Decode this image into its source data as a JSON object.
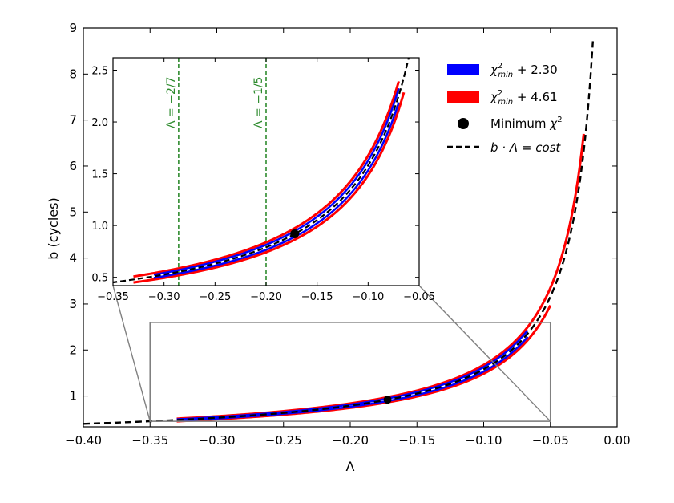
{
  "chart_data": [
    {
      "type": "line",
      "xlabel": "Λ",
      "ylabel": "b (cycles)",
      "xlim": [
        -0.4,
        0.0
      ],
      "ylim": [
        0.33,
        9.0
      ],
      "grid": false,
      "legend_position": "top-right",
      "x_ticks": [
        -0.4,
        -0.35,
        -0.3,
        -0.25,
        -0.2,
        -0.15,
        -0.1,
        -0.05,
        0.0
      ],
      "x_tick_labels": [
        "−0.40",
        "−0.35",
        "−0.30",
        "−0.25",
        "−0.20",
        "−0.15",
        "−0.10",
        "−0.05",
        "0.00"
      ],
      "y_ticks": [
        1,
        2,
        3,
        4,
        5,
        6,
        7,
        8,
        9
      ],
      "y_tick_labels": [
        "1",
        "2",
        "3",
        "4",
        "5",
        "6",
        "7",
        "8",
        "9"
      ],
      "series": [
        {
          "name": "χ²min + 2.30",
          "color": "#0000ff",
          "x_range": [
            -0.33,
            -0.067
          ],
          "kind": "contour"
        },
        {
          "name": "χ²min + 4.61",
          "color": "#ff0000",
          "x_range": [
            -0.33,
            -0.025
          ],
          "kind": "contour"
        },
        {
          "name": "Minimum χ²",
          "color": "#000000",
          "kind": "point",
          "x": -0.172,
          "y": 0.92
        },
        {
          "name": "b · Λ = cost",
          "color": "#000000",
          "kind": "dashed",
          "x_range": [
            -0.4,
            -0.018
          ],
          "k": -0.158
        }
      ],
      "zoom_box": {
        "xlim": [
          -0.35,
          -0.05
        ],
        "ylim": [
          0.45,
          2.6
        ]
      }
    },
    {
      "type": "line",
      "xlim": [
        -0.35,
        -0.05
      ],
      "ylim": [
        0.42,
        2.62
      ],
      "x_ticks": [
        -0.35,
        -0.3,
        -0.25,
        -0.2,
        -0.15,
        -0.1,
        -0.05
      ],
      "x_tick_labels": [
        "−0.35",
        "−0.30",
        "−0.25",
        "−0.20",
        "−0.15",
        "−0.10",
        "−0.05"
      ],
      "y_ticks": [
        0.5,
        1.0,
        1.5,
        2.0,
        2.5
      ],
      "y_tick_labels": [
        "0.5",
        "1.0",
        "1.5",
        "2.0",
        "2.5"
      ],
      "vlines": [
        {
          "x": -0.2857,
          "label": "Λ = −2/7",
          "color": "#2e8b2e"
        },
        {
          "x": -0.2,
          "label": "Λ = −1/5",
          "color": "#2e8b2e"
        }
      ],
      "minimum_point": {
        "x": -0.172,
        "y": 0.92
      }
    }
  ],
  "legend": {
    "items": [
      {
        "label": "χ²min + 2.30",
        "color": "#0000ff",
        "kind": "patch"
      },
      {
        "label": "χ²min + 4.61",
        "color": "#ff0000",
        "kind": "patch"
      },
      {
        "label": "Minimum χ²",
        "color": "#000000",
        "kind": "point"
      },
      {
        "label": "b · Λ = cost",
        "color": "#000000",
        "kind": "dashed"
      }
    ]
  }
}
